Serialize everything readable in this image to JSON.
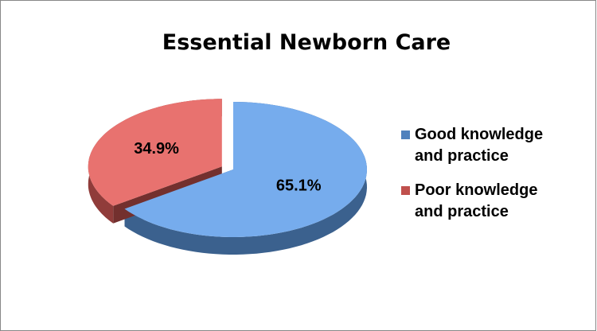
{
  "chart_data": {
    "type": "pie",
    "title": "Essential Newborn Care",
    "categories": [
      "Good knowledge and practice",
      "Poor knowledge and practice"
    ],
    "values": [
      65.1,
      34.9
    ],
    "value_labels": [
      "65.1%",
      "34.9%"
    ],
    "colors": [
      "#4f81bd",
      "#c0504d"
    ],
    "legend": "right"
  }
}
